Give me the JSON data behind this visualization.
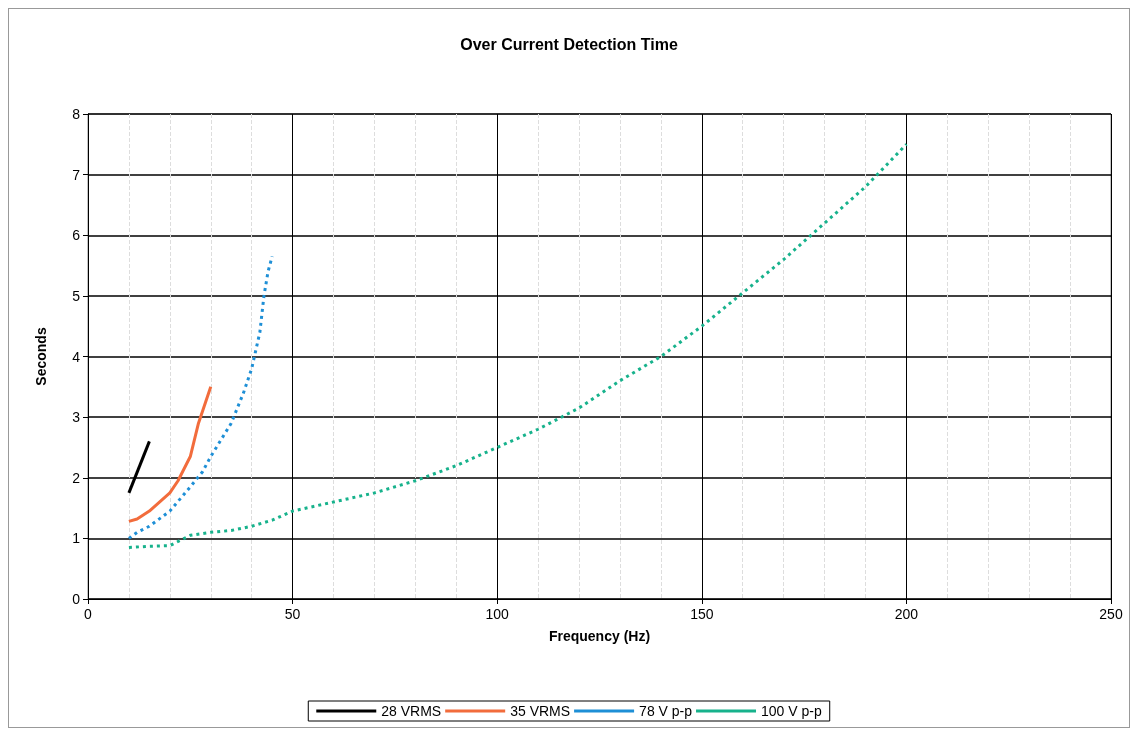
{
  "chart_data": {
    "type": "line",
    "title": "Over Current Detection Time",
    "xlabel": "Frequency (Hz)",
    "ylabel": "Seconds",
    "xlim": [
      0,
      250
    ],
    "xticks": [
      0,
      50,
      100,
      150,
      200,
      250
    ],
    "ylim": [
      0,
      8
    ],
    "yticks": [
      0,
      1,
      2,
      3,
      4,
      5,
      6,
      7,
      8
    ],
    "grid": true,
    "legend": "bottom",
    "marker": "none",
    "series": [
      {
        "name": "28 VRMS",
        "color": "#000000",
        "line_style": "solid",
        "x": [
          10,
          15
        ],
        "values": [
          1.75,
          2.6
        ]
      },
      {
        "name": "35 VRMS",
        "color": "#f26c3c",
        "line_style": "solid",
        "x": [
          10,
          12,
          15,
          20,
          22,
          25,
          27,
          30
        ],
        "values": [
          1.28,
          1.32,
          1.45,
          1.75,
          1.95,
          2.35,
          2.9,
          3.5
        ]
      },
      {
        "name": "78 V p-p",
        "color": "#1e8fd6",
        "line_style": "dotted",
        "x": [
          10,
          12,
          15,
          20,
          25,
          28,
          30,
          35,
          38,
          40,
          42,
          43,
          44,
          45
        ],
        "values": [
          1.0,
          1.1,
          1.2,
          1.45,
          1.85,
          2.1,
          2.35,
          2.9,
          3.4,
          3.8,
          4.4,
          5.0,
          5.4,
          5.65
        ]
      },
      {
        "name": "100 V p-p",
        "color": "#17b28c",
        "line_style": "dotted",
        "x": [
          10,
          15,
          20,
          25,
          30,
          35,
          40,
          45,
          50,
          60,
          70,
          80,
          90,
          100,
          110,
          120,
          130,
          140,
          150,
          160,
          170,
          180,
          190,
          200
        ],
        "values": [
          0.85,
          0.87,
          0.88,
          1.05,
          1.1,
          1.13,
          1.2,
          1.3,
          1.45,
          1.6,
          1.75,
          1.95,
          2.2,
          2.5,
          2.8,
          3.15,
          3.6,
          4.0,
          4.5,
          5.05,
          5.6,
          6.2,
          6.8,
          7.5
        ]
      }
    ]
  }
}
